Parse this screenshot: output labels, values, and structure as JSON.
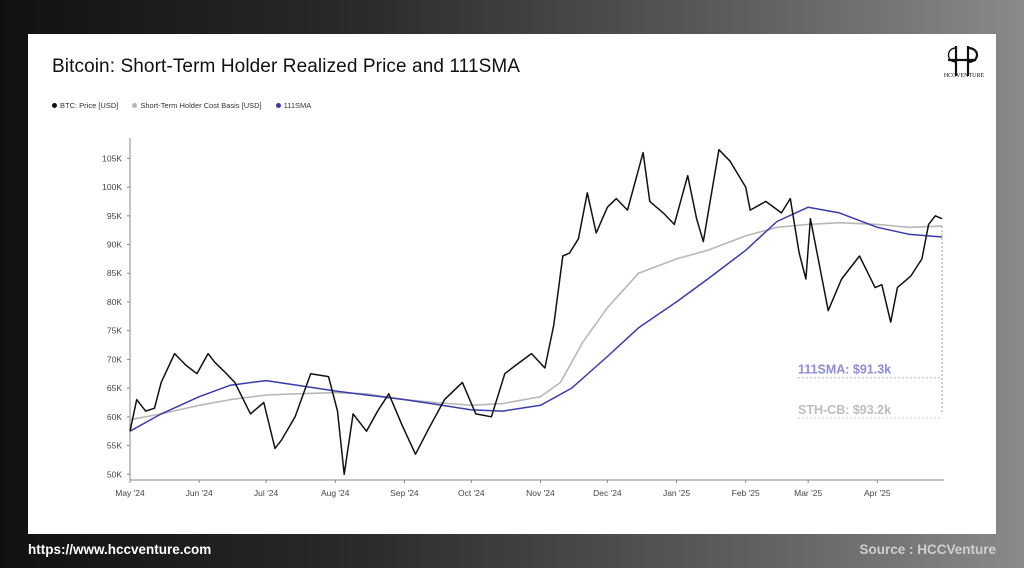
{
  "footer": {
    "website": "https://www.hccventure.com",
    "source": "Source : HCCVenture"
  },
  "logo": {
    "text": "HCCVENTURE",
    "icon": "hcc-monogram-icon"
  },
  "chart_data": {
    "type": "line",
    "title": "Bitcoin: Short-Term Holder Realized Price and 111SMA",
    "xlabel": "",
    "ylabel": "",
    "ylim": [
      49000,
      107500
    ],
    "y_ticks": [
      50000,
      55000,
      60000,
      65000,
      70000,
      75000,
      80000,
      85000,
      90000,
      95000,
      100000,
      105000
    ],
    "y_tick_labels": [
      "50K",
      "55K",
      "60K",
      "65K",
      "70K",
      "75K",
      "80K",
      "85K",
      "90K",
      "95K",
      "100K",
      "105K"
    ],
    "x_ticks": [
      "2024-05-01",
      "2024-06-01",
      "2024-07-01",
      "2024-08-01",
      "2024-09-01",
      "2024-10-01",
      "2024-11-01",
      "2024-12-01",
      "2025-01-01",
      "2025-02-01",
      "2025-03-01",
      "2025-04-01"
    ],
    "x_tick_labels": [
      "May '24",
      "Jun '24",
      "Jul '24",
      "Aug '24",
      "Sep '24",
      "Oct '24",
      "Nov '24",
      "Dec '24",
      "Jan '25",
      "Feb '25",
      "Mar '25",
      "Apr '25"
    ],
    "xlim": [
      "2024-05-01",
      "2025-04-30"
    ],
    "grid": false,
    "legend_position": "top-left",
    "series": [
      {
        "name": "BTC: Price [USD]",
        "color": "#111111",
        "points": [
          [
            "2024-05-01",
            57500
          ],
          [
            "2024-05-04",
            63000
          ],
          [
            "2024-05-08",
            61000
          ],
          [
            "2024-05-12",
            61500
          ],
          [
            "2024-05-15",
            66000
          ],
          [
            "2024-05-21",
            71000
          ],
          [
            "2024-05-26",
            69000
          ],
          [
            "2024-05-31",
            67500
          ],
          [
            "2024-06-05",
            71000
          ],
          [
            "2024-06-08",
            69500
          ],
          [
            "2024-06-12",
            68000
          ],
          [
            "2024-06-17",
            66000
          ],
          [
            "2024-06-24",
            60500
          ],
          [
            "2024-06-30",
            62500
          ],
          [
            "2024-07-05",
            54500
          ],
          [
            "2024-07-08",
            56000
          ],
          [
            "2024-07-14",
            60000
          ],
          [
            "2024-07-21",
            67500
          ],
          [
            "2024-07-29",
            67000
          ],
          [
            "2024-08-02",
            61000
          ],
          [
            "2024-08-05",
            50000
          ],
          [
            "2024-08-09",
            60500
          ],
          [
            "2024-08-15",
            57500
          ],
          [
            "2024-08-20",
            61000
          ],
          [
            "2024-08-25",
            64000
          ],
          [
            "2024-08-31",
            58500
          ],
          [
            "2024-09-06",
            53500
          ],
          [
            "2024-09-12",
            58000
          ],
          [
            "2024-09-19",
            63000
          ],
          [
            "2024-09-27",
            66000
          ],
          [
            "2024-10-03",
            60500
          ],
          [
            "2024-10-10",
            60000
          ],
          [
            "2024-10-16",
            67500
          ],
          [
            "2024-10-21",
            69000
          ],
          [
            "2024-10-28",
            71000
          ],
          [
            "2024-11-03",
            68500
          ],
          [
            "2024-11-07",
            76000
          ],
          [
            "2024-11-11",
            88000
          ],
          [
            "2024-11-14",
            88500
          ],
          [
            "2024-11-18",
            91000
          ],
          [
            "2024-11-22",
            99000
          ],
          [
            "2024-11-26",
            92000
          ],
          [
            "2024-12-01",
            96500
          ],
          [
            "2024-12-05",
            98000
          ],
          [
            "2024-12-10",
            96000
          ],
          [
            "2024-12-17",
            106000
          ],
          [
            "2024-12-20",
            97500
          ],
          [
            "2024-12-26",
            95500
          ],
          [
            "2024-12-31",
            93500
          ],
          [
            "2025-01-06",
            102000
          ],
          [
            "2025-01-10",
            94500
          ],
          [
            "2025-01-13",
            90500
          ],
          [
            "2025-01-20",
            106500
          ],
          [
            "2025-01-25",
            104500
          ],
          [
            "2025-02-01",
            100000
          ],
          [
            "2025-02-03",
            96000
          ],
          [
            "2025-02-10",
            97500
          ],
          [
            "2025-02-17",
            95500
          ],
          [
            "2025-02-21",
            98000
          ],
          [
            "2025-02-25",
            88500
          ],
          [
            "2025-02-28",
            84000
          ],
          [
            "2025-03-02",
            94500
          ],
          [
            "2025-03-05",
            88500
          ],
          [
            "2025-03-10",
            78500
          ],
          [
            "2025-03-16",
            84000
          ],
          [
            "2025-03-24",
            88000
          ],
          [
            "2025-03-31",
            82500
          ],
          [
            "2025-04-03",
            83000
          ],
          [
            "2025-04-07",
            76500
          ],
          [
            "2025-04-10",
            82500
          ],
          [
            "2025-04-16",
            84500
          ],
          [
            "2025-04-21",
            87500
          ],
          [
            "2025-04-24",
            93500
          ],
          [
            "2025-04-27",
            95000
          ],
          [
            "2025-04-30",
            94500
          ]
        ]
      },
      {
        "name": "Short-Term Holder Cost Basis [USD]",
        "color": "#b8b8b8",
        "points": [
          [
            "2024-05-01",
            59500
          ],
          [
            "2024-05-15",
            60500
          ],
          [
            "2024-06-01",
            62000
          ],
          [
            "2024-06-15",
            63000
          ],
          [
            "2024-07-01",
            63800
          ],
          [
            "2024-07-15",
            64000
          ],
          [
            "2024-08-01",
            64200
          ],
          [
            "2024-08-15",
            64000
          ],
          [
            "2024-09-01",
            63000
          ],
          [
            "2024-09-15",
            62500
          ],
          [
            "2024-10-01",
            62000
          ],
          [
            "2024-10-15",
            62300
          ],
          [
            "2024-11-01",
            63500
          ],
          [
            "2024-11-10",
            66000
          ],
          [
            "2024-11-20",
            73000
          ],
          [
            "2024-12-01",
            79000
          ],
          [
            "2024-12-15",
            85000
          ],
          [
            "2025-01-01",
            87500
          ],
          [
            "2025-01-15",
            89000
          ],
          [
            "2025-02-01",
            91500
          ],
          [
            "2025-02-15",
            93000
          ],
          [
            "2025-03-01",
            93500
          ],
          [
            "2025-03-15",
            93800
          ],
          [
            "2025-04-01",
            93500
          ],
          [
            "2025-04-15",
            93000
          ],
          [
            "2025-04-30",
            93200
          ]
        ]
      },
      {
        "name": "111SMA",
        "color": "#3b3bab",
        "points": [
          [
            "2024-05-01",
            57500
          ],
          [
            "2024-05-15",
            60500
          ],
          [
            "2024-06-01",
            63500
          ],
          [
            "2024-06-15",
            65500
          ],
          [
            "2024-07-01",
            66300
          ],
          [
            "2024-07-15",
            65500
          ],
          [
            "2024-08-01",
            64500
          ],
          [
            "2024-08-15",
            63800
          ],
          [
            "2024-09-01",
            63000
          ],
          [
            "2024-09-15",
            62200
          ],
          [
            "2024-10-01",
            61200
          ],
          [
            "2024-10-15",
            61000
          ],
          [
            "2024-11-01",
            62000
          ],
          [
            "2024-11-15",
            65000
          ],
          [
            "2024-12-01",
            70500
          ],
          [
            "2024-12-15",
            75500
          ],
          [
            "2025-01-01",
            80000
          ],
          [
            "2025-01-15",
            84000
          ],
          [
            "2025-02-01",
            89000
          ],
          [
            "2025-02-15",
            94000
          ],
          [
            "2025-03-01",
            96500
          ],
          [
            "2025-03-15",
            95500
          ],
          [
            "2025-04-01",
            93000
          ],
          [
            "2025-04-15",
            91800
          ],
          [
            "2025-04-30",
            91300
          ]
        ]
      }
    ],
    "annotations": [
      {
        "label": "111SMA: $91.3k",
        "color": "#8c8cd6"
      },
      {
        "label": "STH-CB: $93.2k",
        "color": "#bdbdbd"
      }
    ]
  }
}
